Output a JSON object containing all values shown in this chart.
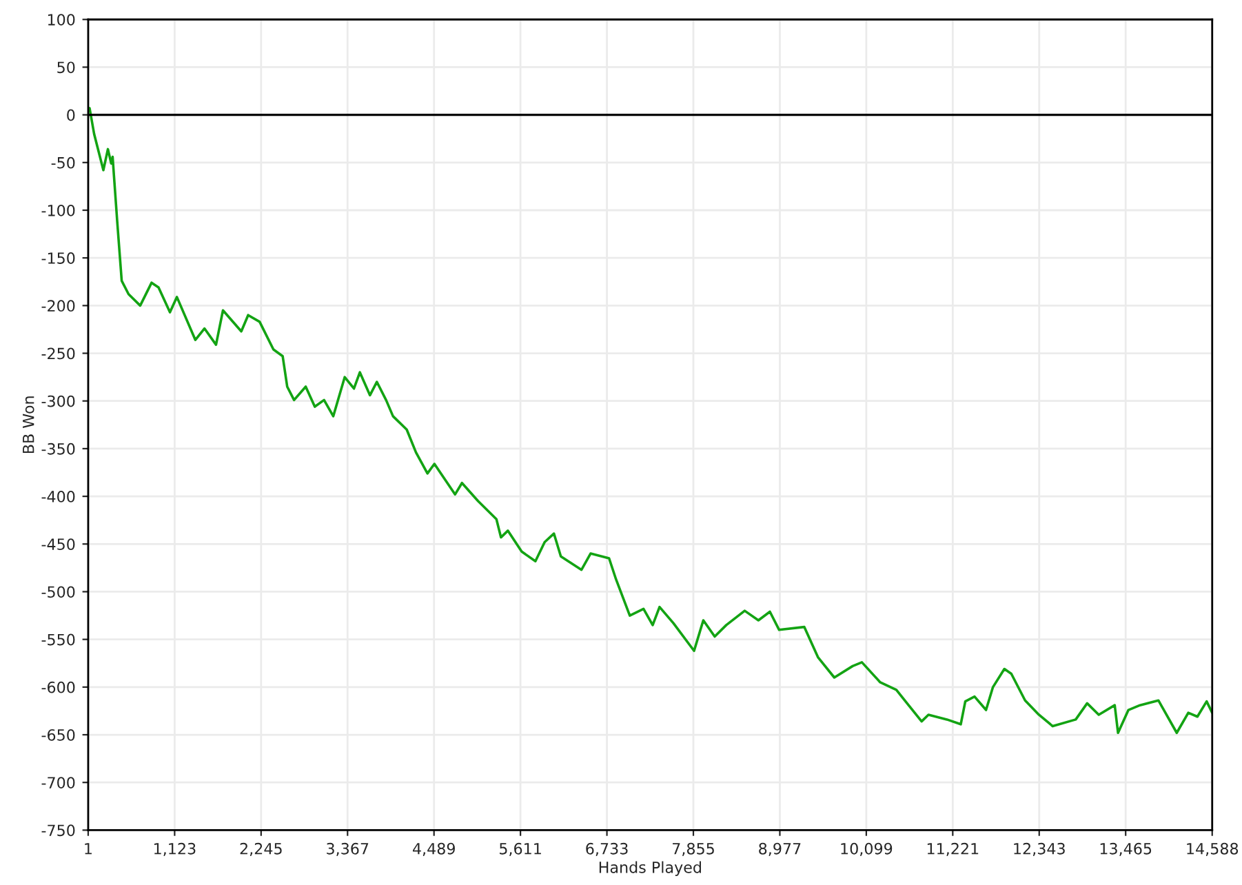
{
  "chart_data": {
    "type": "line",
    "xlabel": "Hands Played",
    "ylabel": "BB Won",
    "xlim": [
      1,
      14588
    ],
    "xticks": [
      {
        "value": 1,
        "label": "1"
      },
      {
        "value": 1123,
        "label": "1,123"
      },
      {
        "value": 2245,
        "label": "2,245"
      },
      {
        "value": 3367,
        "label": "3,367"
      },
      {
        "value": 4489,
        "label": "4,489"
      },
      {
        "value": 5611,
        "label": "5,611"
      },
      {
        "value": 6733,
        "label": "6,733"
      },
      {
        "value": 7855,
        "label": "7,855"
      },
      {
        "value": 8977,
        "label": "8,977"
      },
      {
        "value": 10099,
        "label": "10,099"
      },
      {
        "value": 11221,
        "label": "11,221"
      },
      {
        "value": 12343,
        "label": "12,343"
      },
      {
        "value": 13465,
        "label": "13,465"
      },
      {
        "value": 14588,
        "label": "14,588"
      }
    ],
    "ylim": [
      -750,
      100
    ],
    "yticks": [
      -750,
      -700,
      -650,
      -600,
      -550,
      -500,
      -450,
      -400,
      -350,
      -300,
      -250,
      -200,
      -150,
      -100,
      -50,
      0,
      50,
      100
    ],
    "grid": true,
    "line_style": "solid",
    "ref_lines": [
      {
        "axis": "y",
        "value": 0,
        "color": "#000000"
      }
    ],
    "series": [
      {
        "color": "#13a313",
        "x": [
          1,
          19,
          78,
          198,
          257,
          300,
          318,
          377,
          436,
          525,
          676,
          824,
          914,
          1062,
          1152,
          1392,
          1510,
          1660,
          1750,
          1988,
          2077,
          2226,
          2405,
          2525,
          2584,
          2673,
          2824,
          2942,
          3062,
          3182,
          3330,
          3450,
          3527,
          3658,
          3747,
          3867,
          3957,
          4135,
          4255,
          4404,
          4494,
          4762,
          4852,
          5061,
          5299,
          5358,
          5448,
          5627,
          5805,
          5925,
          6045,
          6135,
          6403,
          6521,
          6761,
          6851,
          7030,
          7208,
          7327,
          7416,
          7596,
          7864,
          7984,
          8132,
          8282,
          8521,
          8699,
          8848,
          8968,
          9295,
          9474,
          9684,
          9922,
          10042,
          10280,
          10489,
          10817,
          10906,
          11146,
          11325,
          11384,
          11504,
          11653,
          11743,
          11891,
          11981,
          12160,
          12339,
          12518,
          12817,
          12965,
          13116,
          13323,
          13366,
          13501,
          13651,
          13890,
          14128,
          14278,
          14396,
          14516,
          14588
        ],
        "values": [
          5,
          7,
          -20,
          -58,
          -36,
          -51,
          -44,
          -111,
          -174,
          -188,
          -200,
          -176,
          -181,
          -207,
          -191,
          -236,
          -224,
          -241,
          -205,
          -227,
          -210,
          -217,
          -246,
          -253,
          -285,
          -299,
          -285,
          -306,
          -299,
          -316,
          -275,
          -287,
          -270,
          -294,
          -280,
          -299,
          -316,
          -330,
          -354,
          -376,
          -366,
          -398,
          -386,
          -405,
          -424,
          -443,
          -436,
          -458,
          -468,
          -448,
          -439,
          -463,
          -477,
          -460,
          -465,
          -487,
          -525,
          -518,
          -535,
          -516,
          -533,
          -562,
          -530,
          -547,
          -535,
          -520,
          -530,
          -521,
          -540,
          -537,
          -569,
          -590,
          -578,
          -574,
          -595,
          -603,
          -636,
          -629,
          -634,
          -639,
          -615,
          -610,
          -624,
          -600,
          -581,
          -586,
          -614,
          -629,
          -641,
          -634,
          -617,
          -629,
          -619,
          -648,
          -624,
          -619,
          -614,
          -648,
          -627,
          -631,
          -615,
          -627
        ]
      }
    ]
  }
}
